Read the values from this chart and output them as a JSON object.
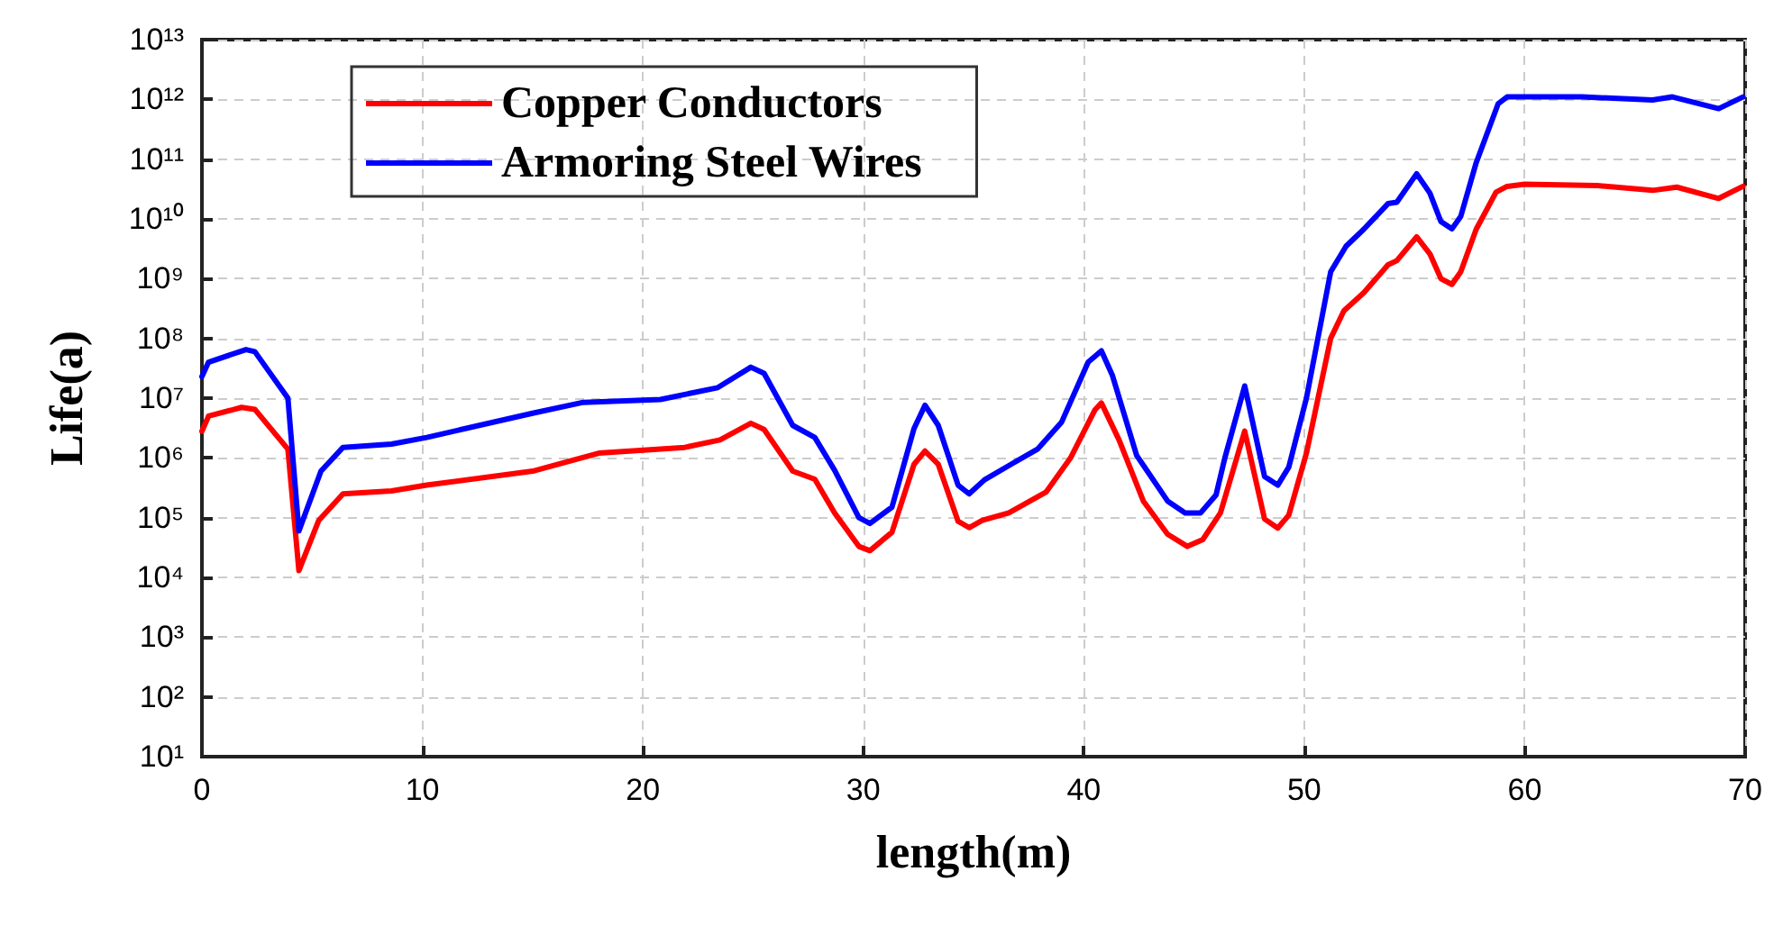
{
  "chart_data": {
    "type": "line",
    "xlabel": "length(m)",
    "ylabel": "Life(a)",
    "log": "y",
    "grid": true,
    "legend": "top left",
    "marker": "none",
    "line_style": "solid",
    "xlim": [
      0,
      70
    ],
    "xticks": [
      0,
      10,
      20,
      30,
      40,
      50,
      60,
      70
    ],
    "ylim": [
      10,
      10000000000000.0
    ],
    "yticks": [
      {
        "value": 10,
        "label": "10¹"
      },
      {
        "value": 100,
        "label": "10²"
      },
      {
        "value": 1000,
        "label": "10³"
      },
      {
        "value": 10000,
        "label": "10⁴"
      },
      {
        "value": 100000,
        "label": "10⁵"
      },
      {
        "value": 1000000,
        "label": "10⁶"
      },
      {
        "value": 10000000,
        "label": "10⁷"
      },
      {
        "value": 100000000,
        "label": "10⁸"
      },
      {
        "value": 1000000000,
        "label": "10⁹"
      },
      {
        "value": 10000000000,
        "label": "10¹⁰"
      },
      {
        "value": 100000000000,
        "label": "10¹¹"
      },
      {
        "value": 1000000000000,
        "label": "10¹²"
      },
      {
        "value": 10000000000000,
        "label": "10¹³"
      }
    ],
    "series": [
      {
        "name": "Copper Conductors",
        "color": "#ff0000",
        "x": [
          0,
          0.3,
          1.8,
          2.4,
          3.9,
          4.4,
          5.3,
          6.4,
          8.6,
          10.2,
          15,
          18,
          21.9,
          23.5,
          24.9,
          25.5,
          26.8,
          27.8,
          28.7,
          29.8,
          30.3,
          31.3,
          32.3,
          32.8,
          33.4,
          34.3,
          34.8,
          35.4,
          36.6,
          38.3,
          39.4,
          40.5,
          40.8,
          41.6,
          42.7,
          43.8,
          44.7,
          45.4,
          46.2,
          47.3,
          48.2,
          48.8,
          49.3,
          50.1,
          51.2,
          51.8,
          52.7,
          53.8,
          54.2,
          55.1,
          55.7,
          56.2,
          56.7,
          57.1,
          57.8,
          58.7,
          59.2,
          60,
          63.3,
          65.8,
          66.9,
          68.8,
          69.9
        ],
        "values": [
          2800000,
          5000000,
          7000000,
          6500000,
          1400000,
          13000,
          90000,
          250000,
          280000,
          350000,
          600000,
          1200000,
          1500000,
          2000000,
          3800000,
          3000000,
          600000,
          440000,
          120000,
          33000,
          28000,
          57000,
          780000,
          1300000,
          780000,
          87000,
          68000,
          90000,
          120000,
          270000,
          1000000,
          6300000,
          8300000,
          2000000,
          190000,
          53000,
          33000,
          43000,
          120000,
          2800000,
          95000,
          67000,
          110000,
          1200000,
          100000000,
          290000000,
          580000000,
          1700000000,
          2000000000,
          5000000000,
          2600000000,
          1000000000,
          800000000,
          1300000000,
          6700000000,
          28000000000,
          35000000000,
          38000000000,
          36000000000,
          30000000000,
          34000000000,
          22000000000,
          35000000000
        ]
      },
      {
        "name": "Armoring Steel Wires",
        "color": "#0000ff",
        "x": [
          0,
          0.3,
          2.0,
          2.4,
          3.9,
          4.4,
          5.4,
          6.4,
          8.6,
          10.2,
          15,
          17.3,
          20.8,
          23.4,
          24.9,
          25.5,
          26.8,
          27.8,
          28.7,
          29.8,
          30.3,
          31.3,
          32.3,
          32.8,
          33.4,
          34.3,
          34.8,
          35.5,
          36.7,
          37.9,
          39.0,
          40.2,
          40.8,
          41.3,
          42.4,
          43.8,
          44.6,
          45.3,
          46.0,
          46.4,
          47.3,
          48.2,
          48.8,
          49.3,
          50.1,
          51.2,
          51.9,
          52.7,
          53.8,
          54.2,
          55.1,
          55.7,
          56.2,
          56.7,
          57.1,
          57.8,
          58.8,
          59.2,
          60,
          62.6,
          65.8,
          66.7,
          68.8,
          69.9
        ],
        "values": [
          23000000,
          40000000,
          65000000,
          60000000,
          10000000,
          60000,
          600000,
          1500000,
          1700000,
          2200000,
          5600000,
          8500000,
          9500000,
          15000000,
          33000000,
          26000000,
          3500000,
          2200000,
          620000,
          100000,
          80000,
          150000,
          3100000,
          7600000,
          3500000,
          350000,
          250000,
          430000,
          780000,
          1400000,
          4000000,
          40000000,
          62000000,
          24000000,
          1100000,
          190000,
          120000,
          120000,
          240000,
          1000000,
          16000000,
          490000,
          350000,
          700000,
          10000000,
          1300000000,
          3500000000,
          6700000000,
          18000000000,
          19000000000,
          57000000000,
          27000000000,
          9000000000,
          6800000000,
          11000000000,
          87000000000,
          850000000000,
          1100000000000,
          1100000000000,
          1100000000000,
          980000000000,
          1100000000000,
          700000000000,
          1100000000000
        ]
      }
    ]
  }
}
